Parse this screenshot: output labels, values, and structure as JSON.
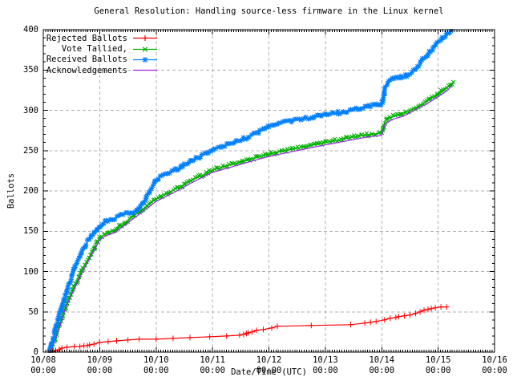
{
  "title": "General Resolution: Handling source-less firmware in the Linux kernel",
  "axes": {
    "xlabel": "Date/Time (UTC)",
    "ylabel": "Ballots",
    "x_tick_dates": [
      "10/08",
      "10/09",
      "10/10",
      "10/11",
      "10/12",
      "10/13",
      "10/14",
      "10/15",
      "10/16"
    ],
    "x_tick_time": "00:00",
    "y_ticks": [
      0,
      50,
      100,
      150,
      200,
      250,
      300,
      350,
      400
    ]
  },
  "legend": {
    "position": "top-left",
    "items": [
      {
        "label": "Rejected Ballots",
        "color": "#ff0000",
        "marker": "plus"
      },
      {
        "label": "Vote Tallied,",
        "color": "#00b000",
        "marker": "cross"
      },
      {
        "label": "Received Ballots",
        "color": "#0080ff",
        "marker": "star"
      },
      {
        "label": "Acknowledgements",
        "color": "#a020f0",
        "marker": "none"
      }
    ]
  },
  "colors": {
    "background": "#ffffff",
    "frame": "#000000",
    "grid": "#b0b0b0",
    "text": "#000000",
    "rejected": "#ff0000",
    "tallied": "#00b000",
    "received": "#0080ff",
    "acknowledgements": "#a020f0"
  },
  "chart_data": {
    "type": "line",
    "title": "General Resolution: Handling source-less firmware in the Linux kernel",
    "xlabel": "Date/Time (UTC)",
    "ylabel": "Ballots",
    "grid": true,
    "legend_position": "top-left",
    "ylim": [
      0,
      400
    ],
    "y_major_step": 50,
    "y_minor_step": 10,
    "x_axis": {
      "unit": "days since 10/08 00:00 UTC",
      "range": [
        0,
        8
      ],
      "major_tick_labels": [
        "10/08 00:00",
        "10/09 00:00",
        "10/10 00:00",
        "10/11 00:00",
        "10/12 00:00",
        "10/13 00:00",
        "10/14 00:00",
        "10/15 00:00",
        "10/16 00:00"
      ],
      "minor_ticks_per_day": 24
    },
    "series": [
      {
        "name": "Rejected Ballots",
        "color": "#ff0000",
        "marker": "plus",
        "dense_band": false,
        "points": [
          [
            0.13,
            0
          ],
          [
            0.17,
            1
          ],
          [
            0.22,
            2
          ],
          [
            0.28,
            3
          ],
          [
            0.33,
            5
          ],
          [
            0.42,
            6
          ],
          [
            0.55,
            7
          ],
          [
            0.65,
            7
          ],
          [
            0.72,
            8
          ],
          [
            0.78,
            8
          ],
          [
            0.82,
            9
          ],
          [
            0.9,
            10
          ],
          [
            1.0,
            12
          ],
          [
            1.15,
            13
          ],
          [
            1.3,
            14
          ],
          [
            1.5,
            15
          ],
          [
            1.7,
            16
          ],
          [
            2.0,
            16
          ],
          [
            2.3,
            17
          ],
          [
            2.6,
            18
          ],
          [
            2.95,
            19
          ],
          [
            3.25,
            20
          ],
          [
            3.48,
            21
          ],
          [
            3.55,
            22
          ],
          [
            3.6,
            23
          ],
          [
            3.63,
            24
          ],
          [
            3.7,
            25
          ],
          [
            3.78,
            27
          ],
          [
            3.9,
            28
          ],
          [
            4.05,
            30
          ],
          [
            4.15,
            32
          ],
          [
            4.75,
            33
          ],
          [
            5.45,
            34
          ],
          [
            5.7,
            36
          ],
          [
            5.8,
            37
          ],
          [
            5.9,
            38
          ],
          [
            6.05,
            40
          ],
          [
            6.15,
            42
          ],
          [
            6.25,
            43
          ],
          [
            6.3,
            44
          ],
          [
            6.4,
            45
          ],
          [
            6.5,
            46
          ],
          [
            6.6,
            48
          ],
          [
            6.68,
            50
          ],
          [
            6.75,
            52
          ],
          [
            6.82,
            53
          ],
          [
            6.88,
            54
          ],
          [
            6.95,
            55
          ],
          [
            7.05,
            56
          ],
          [
            7.15,
            56
          ]
        ]
      },
      {
        "name": "Vote Tallied,",
        "color": "#00b000",
        "marker": "cross",
        "dense_band": true,
        "points": [
          [
            0.12,
            0
          ],
          [
            0.15,
            5
          ],
          [
            0.18,
            11
          ],
          [
            0.22,
            18
          ],
          [
            0.26,
            27
          ],
          [
            0.3,
            36
          ],
          [
            0.34,
            44
          ],
          [
            0.38,
            52
          ],
          [
            0.42,
            60
          ],
          [
            0.46,
            67
          ],
          [
            0.5,
            74
          ],
          [
            0.55,
            82
          ],
          [
            0.6,
            89
          ],
          [
            0.65,
            96
          ],
          [
            0.7,
            103
          ],
          [
            0.75,
            110
          ],
          [
            0.8,
            116
          ],
          [
            0.85,
            122
          ],
          [
            0.9,
            129
          ],
          [
            0.95,
            136
          ],
          [
            1.0,
            142
          ],
          [
            1.1,
            147
          ],
          [
            1.25,
            151
          ],
          [
            1.4,
            158
          ],
          [
            1.55,
            166
          ],
          [
            1.7,
            174
          ],
          [
            1.85,
            182
          ],
          [
            2.0,
            190
          ],
          [
            2.15,
            195
          ],
          [
            2.3,
            201
          ],
          [
            2.45,
            206
          ],
          [
            2.6,
            212
          ],
          [
            2.75,
            217
          ],
          [
            2.9,
            222
          ],
          [
            3.0,
            226
          ],
          [
            3.15,
            229
          ],
          [
            3.3,
            232
          ],
          [
            3.45,
            235
          ],
          [
            3.6,
            238
          ],
          [
            3.75,
            241
          ],
          [
            3.9,
            244
          ],
          [
            4.0,
            246
          ],
          [
            4.15,
            248
          ],
          [
            4.3,
            250
          ],
          [
            4.5,
            253
          ],
          [
            4.7,
            256
          ],
          [
            4.85,
            258
          ],
          [
            5.0,
            260
          ],
          [
            5.15,
            262
          ],
          [
            5.3,
            264
          ],
          [
            5.45,
            266
          ],
          [
            5.6,
            268
          ],
          [
            5.75,
            270
          ],
          [
            5.9,
            271
          ],
          [
            6.0,
            272
          ],
          [
            6.04,
            283
          ],
          [
            6.08,
            289
          ],
          [
            6.2,
            292
          ],
          [
            6.35,
            296
          ],
          [
            6.5,
            300
          ],
          [
            6.65,
            305
          ],
          [
            6.8,
            311
          ],
          [
            6.95,
            318
          ],
          [
            7.1,
            326
          ],
          [
            7.2,
            331
          ],
          [
            7.27,
            335
          ]
        ]
      },
      {
        "name": "Received Ballots",
        "color": "#0080ff",
        "marker": "star",
        "dense_band": true,
        "points": [
          [
            0.1,
            0
          ],
          [
            0.13,
            6
          ],
          [
            0.16,
            13
          ],
          [
            0.19,
            21
          ],
          [
            0.22,
            29
          ],
          [
            0.25,
            37
          ],
          [
            0.28,
            45
          ],
          [
            0.31,
            52
          ],
          [
            0.34,
            58
          ],
          [
            0.37,
            65
          ],
          [
            0.4,
            72
          ],
          [
            0.44,
            81
          ],
          [
            0.48,
            90
          ],
          [
            0.52,
            98
          ],
          [
            0.56,
            105
          ],
          [
            0.6,
            112
          ],
          [
            0.65,
            120
          ],
          [
            0.7,
            127
          ],
          [
            0.75,
            133
          ],
          [
            0.8,
            139
          ],
          [
            0.85,
            144
          ],
          [
            0.9,
            148
          ],
          [
            0.95,
            152
          ],
          [
            1.0,
            156
          ],
          [
            1.05,
            159
          ],
          [
            1.15,
            164
          ],
          [
            1.3,
            167
          ],
          [
            1.45,
            172
          ],
          [
            1.6,
            174
          ],
          [
            1.7,
            178
          ],
          [
            1.8,
            188
          ],
          [
            1.88,
            199
          ],
          [
            1.95,
            208
          ],
          [
            2.0,
            214
          ],
          [
            2.1,
            219
          ],
          [
            2.25,
            222
          ],
          [
            2.4,
            228
          ],
          [
            2.55,
            234
          ],
          [
            2.7,
            240
          ],
          [
            2.85,
            245
          ],
          [
            3.0,
            251
          ],
          [
            3.15,
            255
          ],
          [
            3.3,
            258
          ],
          [
            3.45,
            262
          ],
          [
            3.6,
            266
          ],
          [
            3.75,
            271
          ],
          [
            3.9,
            276
          ],
          [
            4.0,
            280
          ],
          [
            4.15,
            283
          ],
          [
            4.3,
            286
          ],
          [
            4.5,
            288
          ],
          [
            4.7,
            290
          ],
          [
            4.85,
            292
          ],
          [
            5.0,
            294
          ],
          [
            5.15,
            296
          ],
          [
            5.3,
            298
          ],
          [
            5.45,
            300
          ],
          [
            5.6,
            303
          ],
          [
            5.75,
            305
          ],
          [
            5.9,
            306
          ],
          [
            6.0,
            308
          ],
          [
            6.03,
            318
          ],
          [
            6.07,
            330
          ],
          [
            6.12,
            335
          ],
          [
            6.2,
            339
          ],
          [
            6.3,
            341
          ],
          [
            6.45,
            343
          ],
          [
            6.55,
            349
          ],
          [
            6.65,
            356
          ],
          [
            6.75,
            364
          ],
          [
            6.85,
            372
          ],
          [
            6.95,
            380
          ],
          [
            7.05,
            387
          ],
          [
            7.15,
            394
          ],
          [
            7.24,
            400
          ]
        ]
      },
      {
        "name": "Acknowledgements",
        "color": "#a020f0",
        "marker": "none",
        "dense_band": false,
        "points": [
          [
            0.13,
            0
          ],
          [
            0.2,
            13
          ],
          [
            0.3,
            33
          ],
          [
            0.4,
            56
          ],
          [
            0.5,
            71
          ],
          [
            0.6,
            86
          ],
          [
            0.7,
            100
          ],
          [
            0.8,
            113
          ],
          [
            0.9,
            126
          ],
          [
            1.0,
            139
          ],
          [
            1.1,
            144
          ],
          [
            1.25,
            148
          ],
          [
            1.4,
            155
          ],
          [
            1.55,
            163
          ],
          [
            1.7,
            171
          ],
          [
            1.85,
            179
          ],
          [
            2.0,
            187
          ],
          [
            2.2,
            194
          ],
          [
            2.4,
            201
          ],
          [
            2.6,
            209
          ],
          [
            2.8,
            216
          ],
          [
            3.0,
            223
          ],
          [
            3.3,
            229
          ],
          [
            3.6,
            235
          ],
          [
            3.9,
            241
          ],
          [
            4.15,
            245
          ],
          [
            4.5,
            250
          ],
          [
            4.85,
            255
          ],
          [
            5.15,
            259
          ],
          [
            5.45,
            263
          ],
          [
            5.75,
            267
          ],
          [
            6.0,
            269
          ],
          [
            6.06,
            283
          ],
          [
            6.2,
            289
          ],
          [
            6.4,
            293
          ],
          [
            6.6,
            301
          ],
          [
            6.8,
            308
          ],
          [
            7.0,
            317
          ],
          [
            7.15,
            324
          ],
          [
            7.25,
            331
          ]
        ]
      }
    ]
  }
}
